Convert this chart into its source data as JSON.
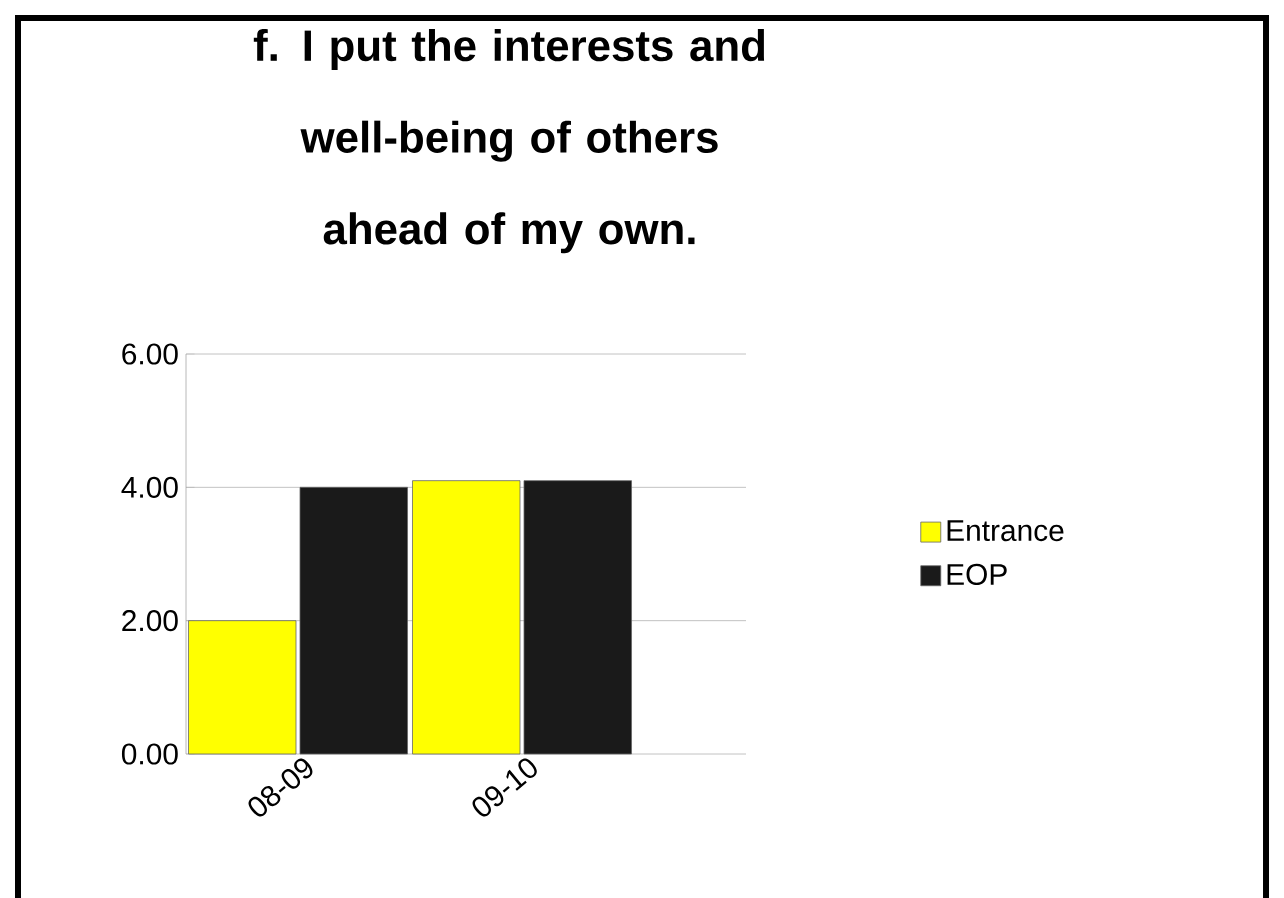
{
  "chart_data": {
    "type": "bar",
    "title": "f. I put the interests and well-being of others ahead of my own.",
    "categories": [
      "08-09",
      "09-10"
    ],
    "series": [
      {
        "name": "Entrance",
        "color": "#ffff00",
        "values": [
          2.0,
          4.1
        ]
      },
      {
        "name": "EOP",
        "color": "#1a1a1a",
        "values": [
          4.0,
          4.1
        ]
      }
    ],
    "ylim": [
      0,
      6
    ],
    "yticks": [
      {
        "value": 0,
        "label": "0.00"
      },
      {
        "value": 2,
        "label": "2.00"
      },
      {
        "value": 4,
        "label": "4.00"
      },
      {
        "value": 6,
        "label": "6.00"
      }
    ],
    "grid": "y",
    "legend": "right"
  }
}
